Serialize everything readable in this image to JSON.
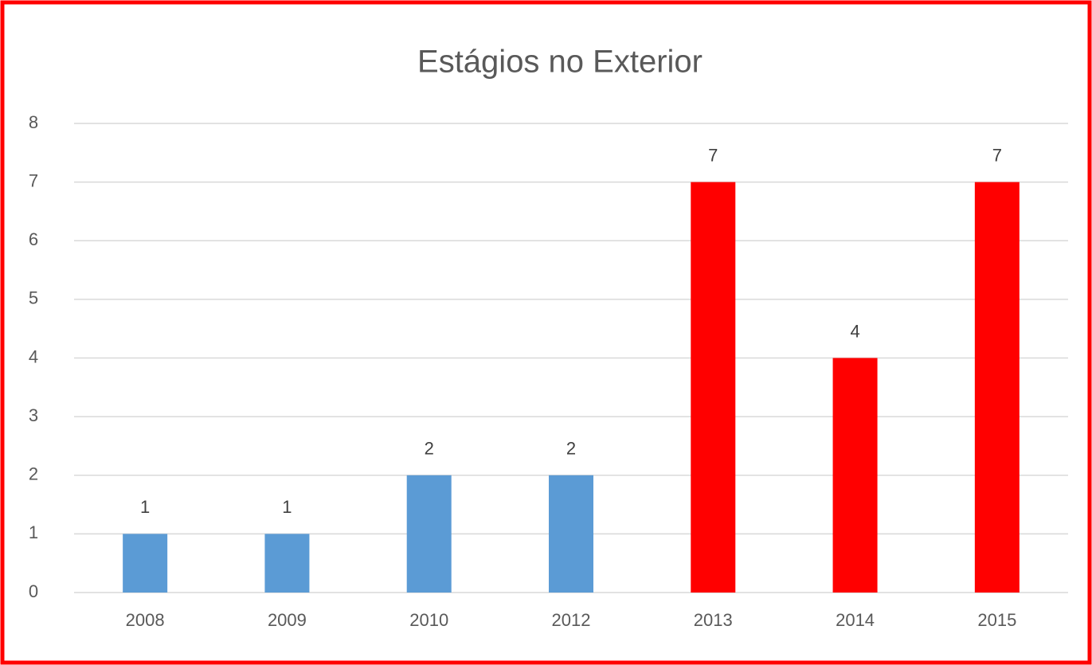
{
  "chart_data": {
    "type": "bar",
    "title": "Estágios no Exterior",
    "categories": [
      "2008",
      "2009",
      "2010",
      "2012",
      "2013",
      "2014",
      "2015"
    ],
    "values": [
      1,
      1,
      2,
      2,
      7,
      4,
      7
    ],
    "colors": [
      "#5b9bd5",
      "#5b9bd5",
      "#5b9bd5",
      "#5b9bd5",
      "#ff0000",
      "#ff0000",
      "#ff0000"
    ],
    "ylim": [
      0,
      8
    ],
    "yticks": [
      0,
      1,
      2,
      3,
      4,
      5,
      6,
      7,
      8
    ],
    "grid": true
  }
}
